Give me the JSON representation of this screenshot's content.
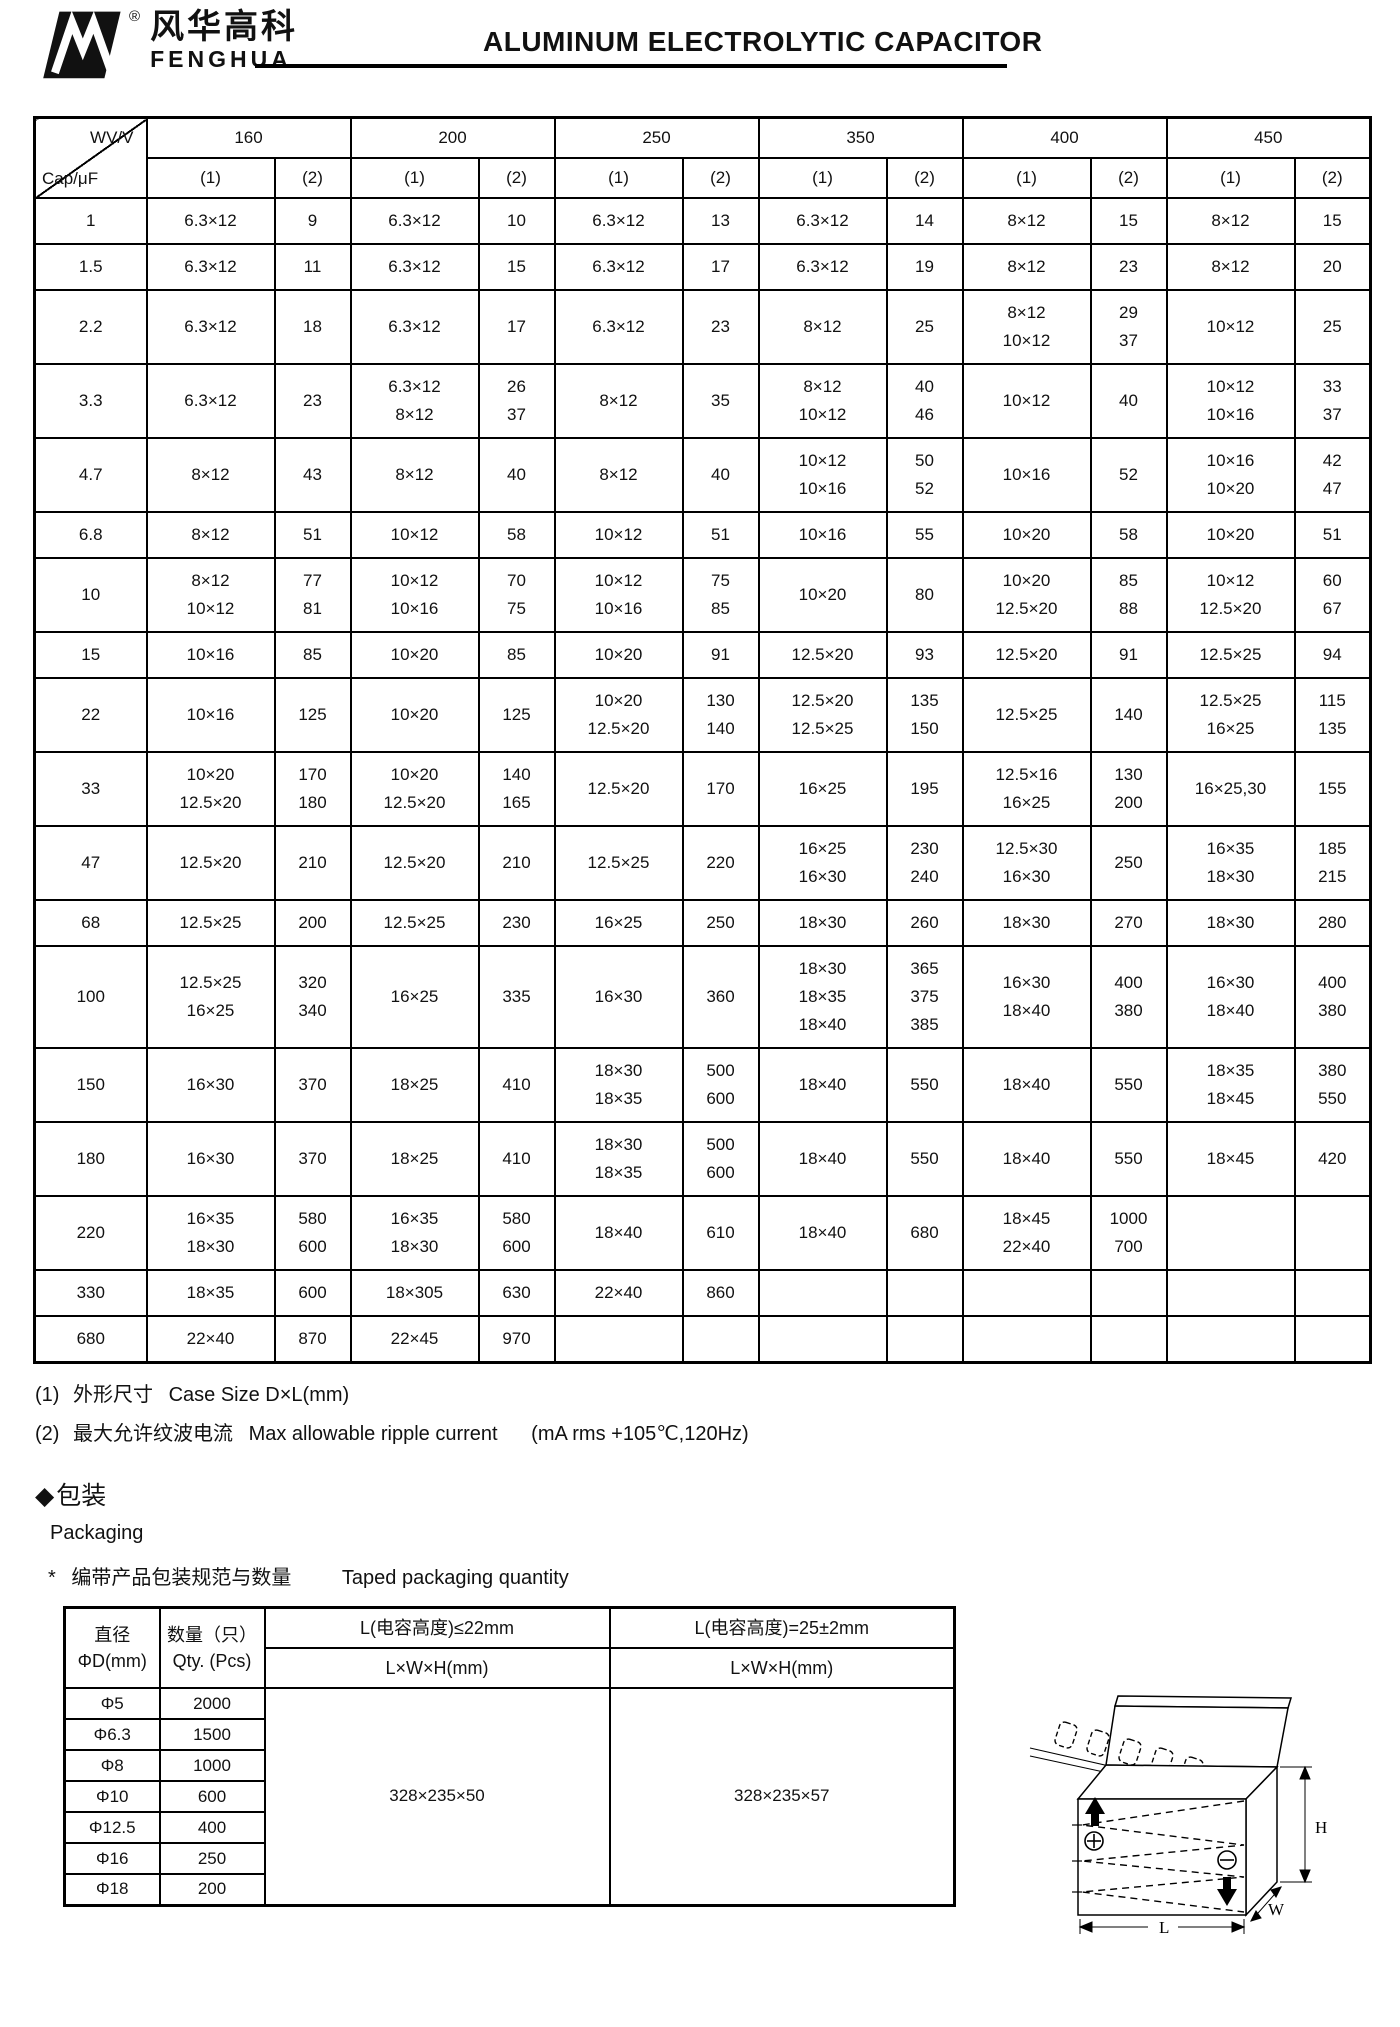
{
  "header": {
    "reg": "®",
    "brand_cn": "风华高科",
    "brand_en": "FENGHUA",
    "title": "ALUMINUM ELECTROLYTIC CAPACITOR"
  },
  "main_table": {
    "corner": {
      "top": "WV/V",
      "bottom": "Cap/μF"
    },
    "voltages": [
      "160",
      "200",
      "250",
      "350",
      "400",
      "450"
    ],
    "sub_headers": [
      "(1)",
      "(2)"
    ],
    "rows": [
      {
        "cap": "1",
        "cells": [
          "6.3×12",
          "9",
          "6.3×12",
          "10",
          "6.3×12",
          "13",
          "6.3×12",
          "14",
          "8×12",
          "15",
          "8×12",
          "15"
        ]
      },
      {
        "cap": "1.5",
        "cells": [
          "6.3×12",
          "11",
          "6.3×12",
          "15",
          "6.3×12",
          "17",
          "6.3×12",
          "19",
          "8×12",
          "23",
          "8×12",
          "20"
        ]
      },
      {
        "cap": "2.2",
        "cells": [
          "6.3×12",
          "18",
          "6.3×12",
          "17",
          "6.3×12",
          "23",
          "8×12",
          "25",
          "8×12\n10×12",
          "29\n37",
          "10×12",
          "25"
        ]
      },
      {
        "cap": "3.3",
        "cells": [
          "6.3×12",
          "23",
          "6.3×12\n8×12",
          "26\n37",
          "8×12",
          "35",
          "8×12\n10×12",
          "40\n46",
          "10×12",
          "40",
          "10×12\n10×16",
          "33\n37"
        ]
      },
      {
        "cap": "4.7",
        "cells": [
          "8×12",
          "43",
          "8×12",
          "40",
          "8×12",
          "40",
          "10×12\n10×16",
          "50\n52",
          "10×16",
          "52",
          "10×16\n10×20",
          "42\n47"
        ]
      },
      {
        "cap": "6.8",
        "cells": [
          "8×12",
          "51",
          "10×12",
          "58",
          "10×12",
          "51",
          "10×16",
          "55",
          "10×20",
          "58",
          "10×20",
          "51"
        ]
      },
      {
        "cap": "10",
        "cells": [
          "8×12\n10×12",
          "77\n81",
          "10×12\n10×16",
          "70\n75",
          "10×12\n10×16",
          "75\n85",
          "10×20",
          "80",
          "10×20\n12.5×20",
          "85\n88",
          "10×12\n12.5×20",
          "60\n67"
        ]
      },
      {
        "cap": "15",
        "cells": [
          "10×16",
          "85",
          "10×20",
          "85",
          "10×20",
          "91",
          "12.5×20",
          "93",
          "12.5×20",
          "91",
          "12.5×25",
          "94"
        ]
      },
      {
        "cap": "22",
        "cells": [
          "10×16",
          "125",
          "10×20",
          "125",
          "10×20\n12.5×20",
          "130\n140",
          "12.5×20\n12.5×25",
          "135\n150",
          "12.5×25",
          "140",
          "12.5×25\n16×25",
          "115\n135"
        ]
      },
      {
        "cap": "33",
        "cells": [
          "10×20\n12.5×20",
          "170\n180",
          "10×20\n12.5×20",
          "140\n165",
          "12.5×20",
          "170",
          "16×25",
          "195",
          "12.5×16\n16×25",
          "130\n200",
          "16×25,30",
          "155"
        ]
      },
      {
        "cap": "47",
        "cells": [
          "12.5×20",
          "210",
          "12.5×20",
          "210",
          "12.5×25",
          "220",
          "16×25\n16×30",
          "230\n240",
          "12.5×30\n16×30",
          "250",
          "16×35\n18×30",
          "185\n215"
        ]
      },
      {
        "cap": "68",
        "cells": [
          "12.5×25",
          "200",
          "12.5×25",
          "230",
          "16×25",
          "250",
          "18×30",
          "260",
          "18×30",
          "270",
          "18×30",
          "280"
        ]
      },
      {
        "cap": "100",
        "cells": [
          "12.5×25\n16×25",
          "320\n340",
          "16×25",
          "335",
          "16×30",
          "360",
          "18×30\n18×35\n18×40",
          "365\n375\n385",
          "16×30\n18×40",
          "400\n380",
          "16×30\n18×40",
          "400\n380"
        ]
      },
      {
        "cap": "150",
        "cells": [
          "16×30",
          "370",
          "18×25",
          "410",
          "18×30\n18×35",
          "500\n600",
          "18×40",
          "550",
          "18×40",
          "550",
          "18×35\n18×45",
          "380\n550"
        ]
      },
      {
        "cap": "180",
        "cells": [
          "16×30",
          "370",
          "18×25",
          "410",
          "18×30\n18×35",
          "500\n600",
          "18×40",
          "550",
          "18×40",
          "550",
          "18×45",
          "420"
        ]
      },
      {
        "cap": "220",
        "cells": [
          "16×35\n18×30",
          "580\n600",
          "16×35\n18×30",
          "580\n600",
          "18×40",
          "610",
          "18×40",
          "680",
          "18×45\n22×40",
          "1000\n700",
          "",
          ""
        ]
      },
      {
        "cap": "330",
        "cells": [
          "18×35",
          "600",
          "18×305",
          "630",
          "22×40",
          "860",
          "",
          "",
          "",
          "",
          "",
          ""
        ]
      },
      {
        "cap": "680",
        "cells": [
          "22×40",
          "870",
          "22×45",
          "970",
          "",
          "",
          "",
          "",
          "",
          "",
          "",
          ""
        ]
      }
    ]
  },
  "notes": [
    {
      "num": "(1)",
      "cn": "外形尺寸",
      "en": "Case Size D×L(mm)",
      "cond": ""
    },
    {
      "num": "(2)",
      "cn": "最大允许纹波电流",
      "en": "Max allowable ripple current",
      "cond": "(mA rms +105℃,120Hz)"
    }
  ],
  "packaging": {
    "diamond": "◆",
    "title_cn": "包装",
    "title_en": "Packaging",
    "star": "*",
    "subtitle_cn": "编带产品包装规范与数量",
    "subtitle_en": "Taped packaging quantity",
    "table": {
      "col1_header": "直径\nΦD(mm)",
      "col2_header": "数量（只）\nQty. (Pcs)",
      "col3_header": "L(电容高度)≤22mm",
      "col4_header": "L(电容高度)=25±2mm",
      "sub_header": "L×W×H(mm)",
      "rows": [
        [
          "Φ5",
          "2000"
        ],
        [
          "Φ6.3",
          "1500"
        ],
        [
          "Φ8",
          "1000"
        ],
        [
          "Φ10",
          "600"
        ],
        [
          "Φ12.5",
          "400"
        ],
        [
          "Φ16",
          "250"
        ],
        [
          "Φ18",
          "200"
        ]
      ],
      "col3_value": "328×235×50",
      "col4_value": "328×235×57"
    },
    "diagram": {
      "h_label": "H",
      "w_label": "W",
      "l_label": "L"
    }
  }
}
